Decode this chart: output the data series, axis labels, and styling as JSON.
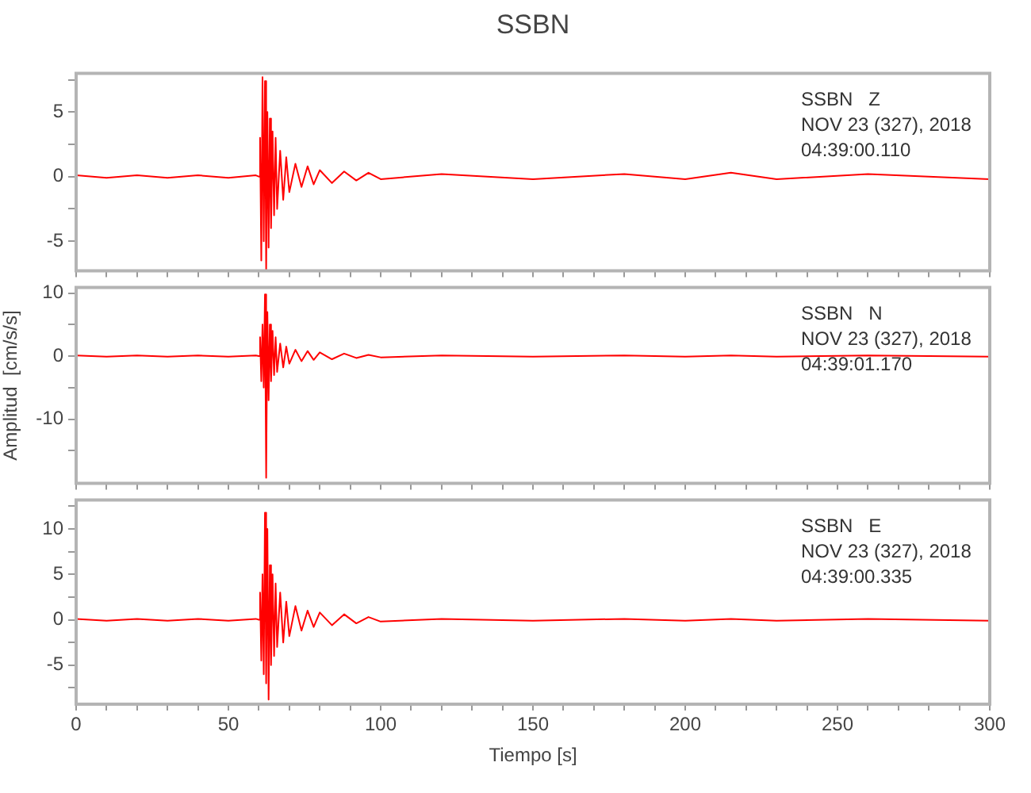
{
  "chart_data": [
    {
      "type": "line",
      "title": "SSBN",
      "annotations": [
        "SSBN   Z",
        "NOV 23 (327), 2018",
        "04:39:00.110"
      ],
      "grid": false,
      "legend": false,
      "tick_labels": "y",
      "xlim": [
        0,
        300
      ],
      "ylim": [
        -7.3,
        8
      ],
      "xticks": [
        {
          "value": 0,
          "label": null
        },
        {
          "value": 10,
          "label": null
        },
        {
          "value": 20,
          "label": null
        },
        {
          "value": 30,
          "label": null
        },
        {
          "value": 40,
          "label": null
        },
        {
          "value": 50,
          "label": null
        },
        {
          "value": 60,
          "label": null
        },
        {
          "value": 70,
          "label": null
        },
        {
          "value": 80,
          "label": null
        },
        {
          "value": 90,
          "label": null
        },
        {
          "value": 100,
          "label": null
        },
        {
          "value": 110,
          "label": null
        },
        {
          "value": 120,
          "label": null
        },
        {
          "value": 130,
          "label": null
        },
        {
          "value": 140,
          "label": null
        },
        {
          "value": 150,
          "label": null
        },
        {
          "value": 160,
          "label": null
        },
        {
          "value": 170,
          "label": null
        },
        {
          "value": 180,
          "label": null
        },
        {
          "value": 190,
          "label": null
        },
        {
          "value": 200,
          "label": null
        },
        {
          "value": 210,
          "label": null
        },
        {
          "value": 220,
          "label": null
        },
        {
          "value": 230,
          "label": null
        },
        {
          "value": 240,
          "label": null
        },
        {
          "value": 250,
          "label": null
        },
        {
          "value": 260,
          "label": null
        },
        {
          "value": 270,
          "label": null
        },
        {
          "value": 280,
          "label": null
        },
        {
          "value": 290,
          "label": null
        },
        {
          "value": 300,
          "label": null
        }
      ],
      "yticks": [
        -5,
        {
          "value": -2.5,
          "label": null
        },
        0,
        {
          "value": 2.5,
          "label": null
        },
        5,
        {
          "value": 7.5,
          "label": null
        }
      ],
      "series": [
        {
          "color": "#ff0000",
          "x": [
            0,
            10,
            20,
            30,
            40,
            50,
            59,
            60,
            60.4,
            60.8,
            61.2,
            61.6,
            62,
            62.4,
            62.8,
            63.2,
            63.6,
            64,
            64.5,
            65,
            65.5,
            66,
            67,
            68,
            69,
            70,
            72,
            74,
            76,
            78,
            80,
            84,
            88,
            92,
            96,
            100,
            120,
            150,
            180,
            200,
            215,
            230,
            260,
            300
          ],
          "values": [
            0.1,
            -0.1,
            0.1,
            -0.1,
            0.1,
            -0.1,
            0.1,
            0,
            3,
            -6.5,
            7.7,
            -5,
            7.4,
            -7.3,
            5,
            -5.5,
            4.5,
            -4,
            3.5,
            -3,
            3,
            -2.5,
            2,
            -1.8,
            1.5,
            -1.2,
            1,
            -0.8,
            0.8,
            -0.6,
            0.5,
            -0.5,
            0.4,
            -0.3,
            0.3,
            -0.2,
            0.2,
            -0.2,
            0.2,
            -0.2,
            0.3,
            -0.2,
            0.2,
            -0.2
          ]
        }
      ]
    },
    {
      "type": "line",
      "ylabel": "Amplitud  [cm/s/s]",
      "annotations": [
        "SSBN   N",
        "NOV 23 (327), 2018",
        "04:39:01.170"
      ],
      "grid": false,
      "legend": false,
      "tick_labels": "y",
      "xlim": [
        0,
        300
      ],
      "ylim": [
        -20.2,
        10.9
      ],
      "xticks": [
        {
          "value": 0,
          "label": null
        },
        {
          "value": 10,
          "label": null
        },
        {
          "value": 20,
          "label": null
        },
        {
          "value": 30,
          "label": null
        },
        {
          "value": 40,
          "label": null
        },
        {
          "value": 50,
          "label": null
        },
        {
          "value": 60,
          "label": null
        },
        {
          "value": 70,
          "label": null
        },
        {
          "value": 80,
          "label": null
        },
        {
          "value": 90,
          "label": null
        },
        {
          "value": 100,
          "label": null
        },
        {
          "value": 110,
          "label": null
        },
        {
          "value": 120,
          "label": null
        },
        {
          "value": 130,
          "label": null
        },
        {
          "value": 140,
          "label": null
        },
        {
          "value": 150,
          "label": null
        },
        {
          "value": 160,
          "label": null
        },
        {
          "value": 170,
          "label": null
        },
        {
          "value": 180,
          "label": null
        },
        {
          "value": 190,
          "label": null
        },
        {
          "value": 200,
          "label": null
        },
        {
          "value": 210,
          "label": null
        },
        {
          "value": 220,
          "label": null
        },
        {
          "value": 230,
          "label": null
        },
        {
          "value": 240,
          "label": null
        },
        {
          "value": 250,
          "label": null
        },
        {
          "value": 260,
          "label": null
        },
        {
          "value": 270,
          "label": null
        },
        {
          "value": 280,
          "label": null
        },
        {
          "value": 290,
          "label": null
        },
        {
          "value": 300,
          "label": null
        }
      ],
      "yticks": [
        {
          "value": -15,
          "label": null
        },
        -10,
        {
          "value": -5,
          "label": null
        },
        0,
        {
          "value": 5,
          "label": null
        },
        10
      ],
      "series": [
        {
          "color": "#ff0000",
          "x": [
            0,
            10,
            20,
            30,
            40,
            50,
            59,
            60,
            60.4,
            60.8,
            61.2,
            61.6,
            62,
            62.4,
            62.8,
            63.2,
            63.6,
            64,
            64.5,
            65,
            65.5,
            66,
            67,
            68,
            69,
            70,
            72,
            74,
            76,
            78,
            80,
            84,
            88,
            92,
            96,
            100,
            120,
            150,
            180,
            200,
            215,
            230,
            260,
            300
          ],
          "values": [
            0.1,
            -0.1,
            0.1,
            -0.1,
            0.1,
            -0.1,
            0.1,
            0,
            3,
            -4,
            5,
            -5,
            9.8,
            -19.3,
            7,
            -7,
            5,
            -4,
            4,
            -3,
            3,
            -2.5,
            2,
            -1.8,
            1.5,
            -1.2,
            1,
            -0.8,
            0.8,
            -0.6,
            0.6,
            -0.5,
            0.4,
            -0.3,
            0.2,
            -0.2,
            0.1,
            -0.1,
            0.1,
            -0.1,
            0.1,
            -0.1,
            0.1,
            -0.1
          ]
        }
      ]
    },
    {
      "type": "line",
      "xlabel": "Tiempo [s]",
      "annotations": [
        "SSBN   E",
        "NOV 23 (327), 2018",
        "04:39:00.335"
      ],
      "grid": false,
      "legend": false,
      "xlim": [
        0,
        300
      ],
      "ylim": [
        -9.3,
        13.2
      ],
      "xticks": [
        0,
        {
          "value": 10,
          "label": null
        },
        {
          "value": 20,
          "label": null
        },
        {
          "value": 30,
          "label": null
        },
        {
          "value": 40,
          "label": null
        },
        50,
        {
          "value": 60,
          "label": null
        },
        {
          "value": 70,
          "label": null
        },
        {
          "value": 80,
          "label": null
        },
        {
          "value": 90,
          "label": null
        },
        100,
        {
          "value": 110,
          "label": null
        },
        {
          "value": 120,
          "label": null
        },
        {
          "value": 130,
          "label": null
        },
        {
          "value": 140,
          "label": null
        },
        150,
        {
          "value": 160,
          "label": null
        },
        {
          "value": 170,
          "label": null
        },
        {
          "value": 180,
          "label": null
        },
        {
          "value": 190,
          "label": null
        },
        200,
        {
          "value": 210,
          "label": null
        },
        {
          "value": 220,
          "label": null
        },
        {
          "value": 230,
          "label": null
        },
        {
          "value": 240,
          "label": null
        },
        250,
        {
          "value": 260,
          "label": null
        },
        {
          "value": 270,
          "label": null
        },
        {
          "value": 280,
          "label": null
        },
        {
          "value": 290,
          "label": null
        },
        300
      ],
      "yticks": [
        {
          "value": -7.5,
          "label": null
        },
        -5,
        {
          "value": -2.5,
          "label": null
        },
        0,
        {
          "value": 2.5,
          "label": null
        },
        5,
        {
          "value": 7.5,
          "label": null
        },
        10,
        {
          "value": 12.5,
          "label": null
        }
      ],
      "series": [
        {
          "color": "#ff0000",
          "x": [
            0,
            10,
            20,
            30,
            40,
            50,
            59,
            60,
            60.4,
            60.8,
            61.2,
            61.6,
            62,
            62.4,
            62.8,
            63.2,
            63.6,
            64,
            64.5,
            65,
            65.5,
            66,
            67,
            68,
            69,
            70,
            72,
            74,
            76,
            78,
            80,
            84,
            88,
            92,
            96,
            100,
            120,
            150,
            180,
            200,
            215,
            230,
            260,
            300
          ],
          "values": [
            0.1,
            -0.1,
            0.1,
            -0.1,
            0.1,
            -0.1,
            0.1,
            0,
            3,
            -4.5,
            5,
            -6,
            11.8,
            -7,
            10,
            -8.8,
            6,
            -5,
            5,
            -4,
            4,
            -3,
            3,
            -2.5,
            2,
            -1.8,
            1.5,
            -1.2,
            1,
            -0.8,
            0.8,
            -0.6,
            0.6,
            -0.4,
            0.3,
            -0.2,
            0.1,
            -0.1,
            0.1,
            -0.1,
            0.1,
            -0.1,
            0.1,
            -0.1
          ]
        }
      ]
    }
  ]
}
